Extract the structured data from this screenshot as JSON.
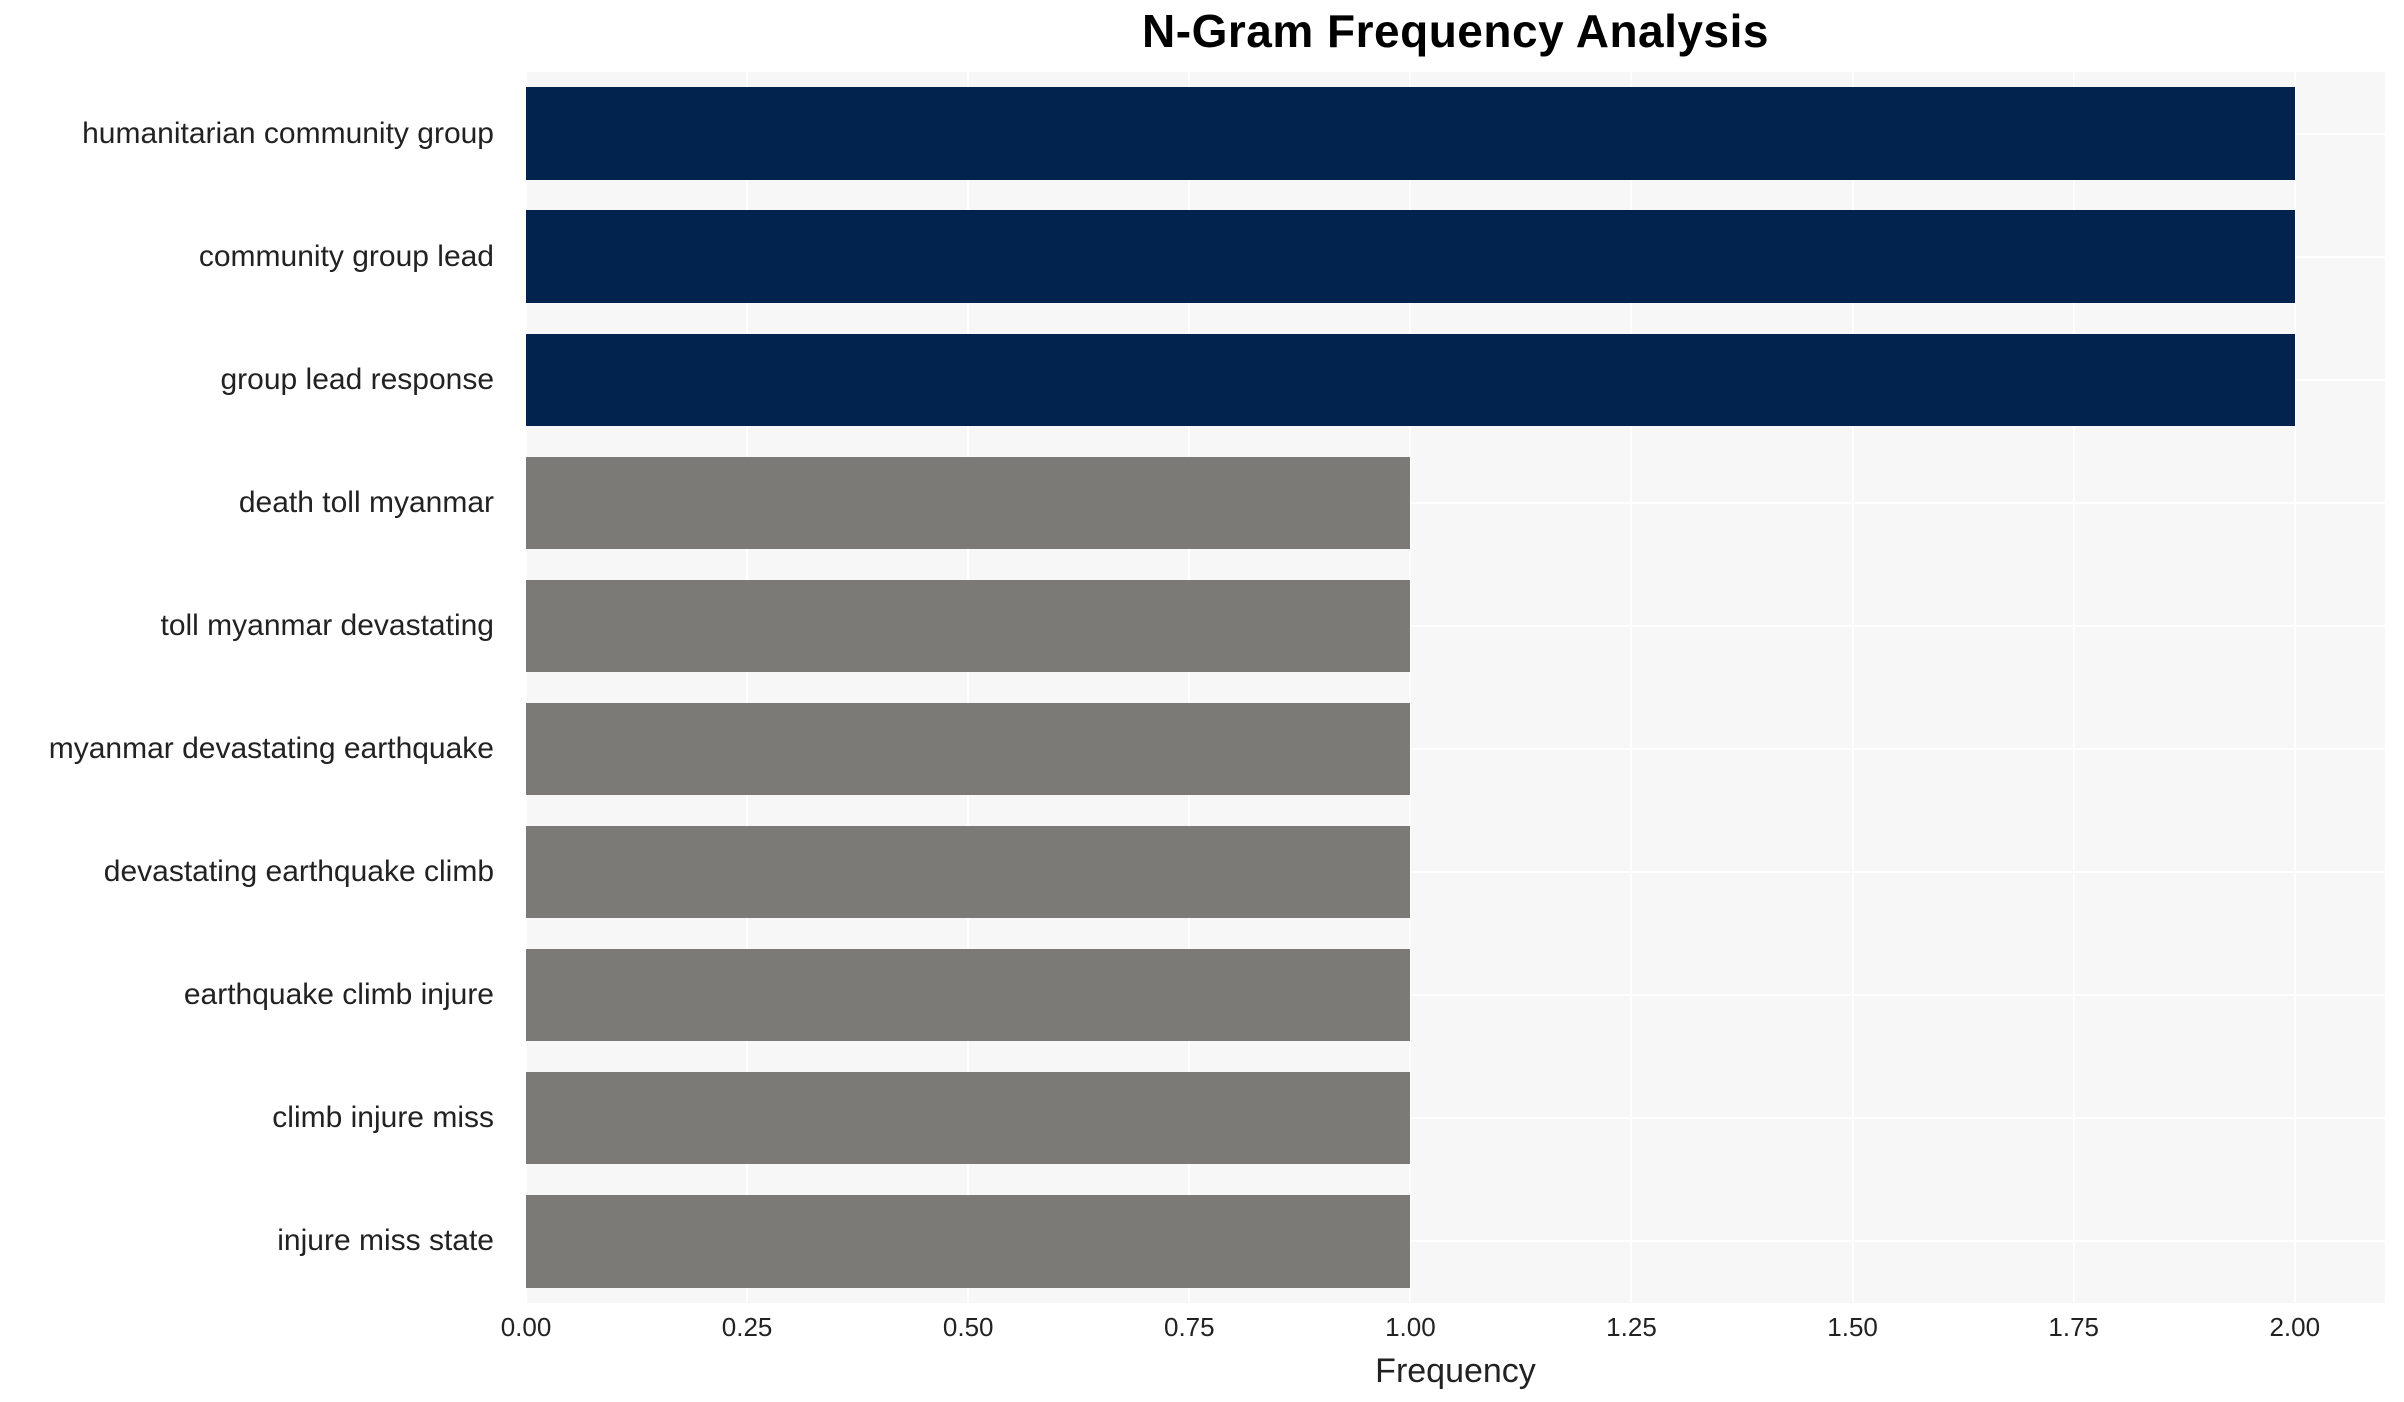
{
  "chart_data": {
    "type": "bar",
    "orientation": "horizontal",
    "title": "N-Gram Frequency Analysis",
    "xlabel": "Frequency",
    "ylabel": "",
    "categories": [
      "humanitarian community group",
      "community group lead",
      "group lead response",
      "death toll myanmar",
      "toll myanmar devastating",
      "myanmar devastating earthquake",
      "devastating earthquake climb",
      "earthquake climb injure",
      "climb injure miss",
      "injure miss state"
    ],
    "values": [
      2,
      2,
      2,
      1,
      1,
      1,
      1,
      1,
      1,
      1
    ],
    "bar_colors": [
      "#02234E",
      "#02234E",
      "#02234E",
      "#7B7A76",
      "#7B7A76",
      "#7B7A76",
      "#7B7A76",
      "#7B7A76",
      "#7B7A76",
      "#7B7A76"
    ],
    "xticks": [
      "0.00",
      "0.25",
      "0.50",
      "0.75",
      "1.00",
      "1.25",
      "1.50",
      "1.75",
      "2.00"
    ],
    "xtick_values": [
      0,
      0.25,
      0.5,
      0.75,
      1.0,
      1.25,
      1.5,
      1.75,
      2.0
    ],
    "xlim": [
      0,
      2.102
    ],
    "grid": true,
    "legend": "none",
    "plot_bg_color": "#F7F7F7",
    "grid_color": "#FFFFFF",
    "accent_color_high": "#02234E",
    "accent_color_low": "#7B7A76"
  }
}
